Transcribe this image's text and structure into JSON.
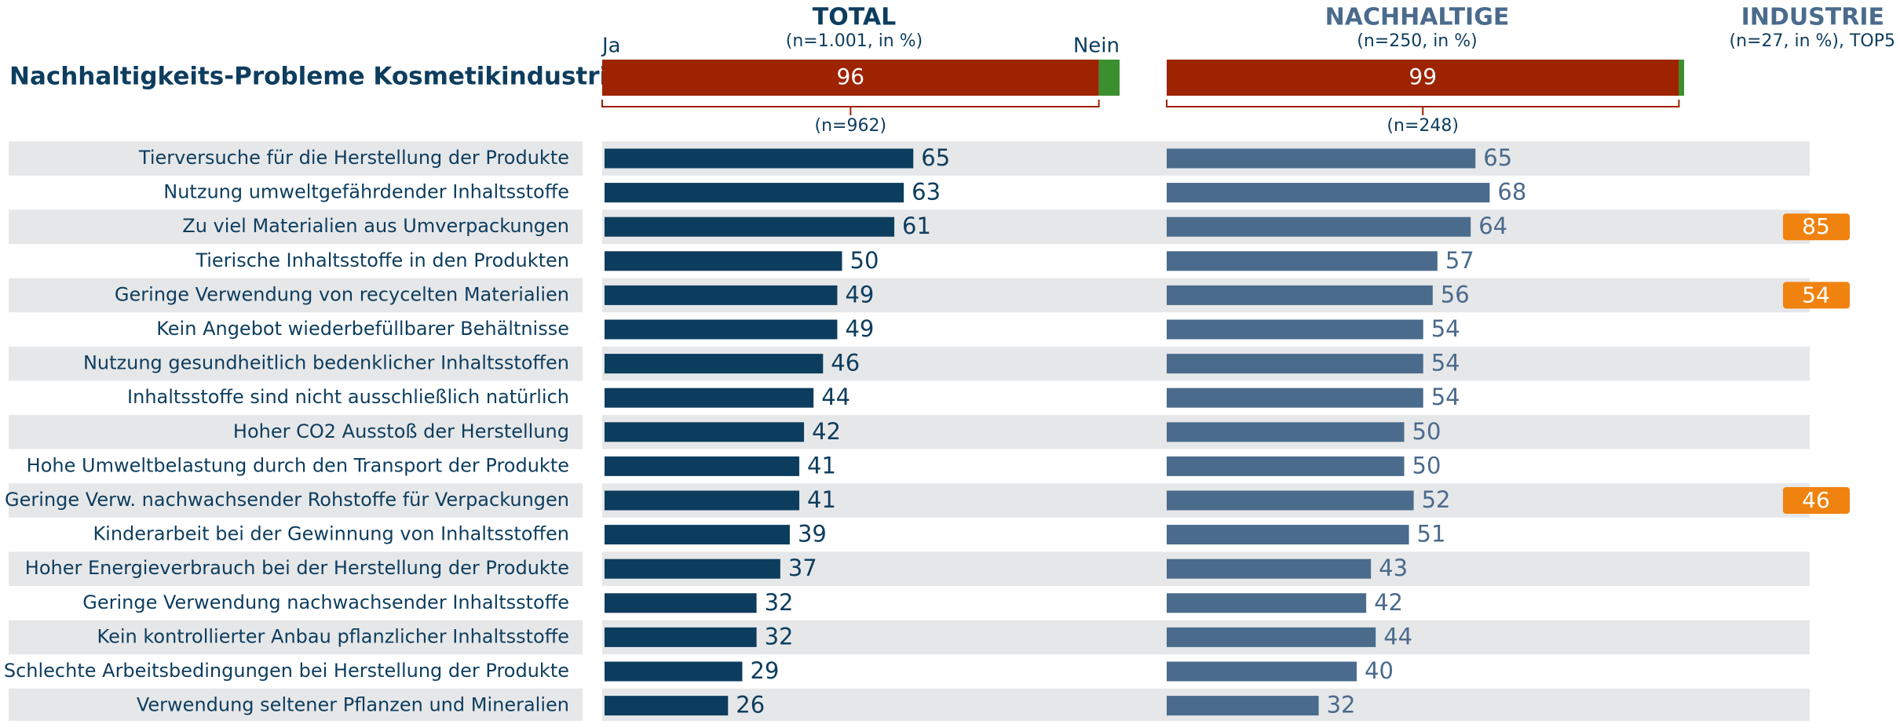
{
  "chart_data": {
    "type": "bar",
    "orientation": "horizontal",
    "title": "Nachhaltigkeits-Probleme Kosmetikindustrie",
    "xlim": [
      0,
      100
    ],
    "ja_label": "Ja",
    "nein_label": "Nein",
    "ja_color": "#9e2300",
    "nein_color": "#3a8f2e",
    "categories": [
      "Tierversuche für die Herstellung der Produkte",
      "Nutzung umweltgefährdender Inhaltsstoffe",
      "Zu viel Materialien aus Umverpackungen",
      "Tierische Inhaltsstoffe in den Produkten",
      "Geringe Verwendung von recycelten Materialien",
      "Kein Angebot wiederbefüllbarer Behältnisse",
      "Nutzung gesundheitlich bedenklicher Inhaltsstoffen",
      "Inhaltsstoffe sind nicht ausschließlich natürlich",
      "Hoher CO2 Ausstoß der Herstellung",
      "Hohe Umweltbelastung durch den Transport der Produkte",
      "Geringe Verw. nachwachsender Rohstoffe für Verpackungen",
      "Kinderarbeit bei der Gewinnung von Inhaltsstoffen",
      "Hoher Energieverbrauch bei der Herstellung der Produkte",
      "Geringe Verwendung nachwachsender Inhaltsstoffe",
      "Kein kontrollierter Anbau pflanzlicher Inhaltsstoffe",
      "Schlechte Arbeitsbedingungen bei Herstellung der Produkte",
      "Verwendung seltener Pflanzen und Mineralien"
    ],
    "series": [
      {
        "name": "TOTAL",
        "subtitle": "(n=1.001, in %)",
        "color": "#0d3d5e",
        "ja": 96,
        "nein": 4,
        "base": "(n=962)",
        "values": [
          65,
          63,
          61,
          50,
          49,
          49,
          46,
          44,
          42,
          41,
          41,
          39,
          37,
          32,
          32,
          29,
          26
        ]
      },
      {
        "name": "NACHHALTIGE",
        "subtitle": "(n=250, in %)",
        "color": "#4a6b8c",
        "ja": 99,
        "nein": 1,
        "base": "(n=248)",
        "values": [
          65,
          68,
          64,
          57,
          56,
          54,
          54,
          54,
          50,
          50,
          52,
          51,
          43,
          42,
          44,
          40,
          32
        ]
      },
      {
        "name": "INDUSTRIE",
        "subtitle": "(n=27, in %), TOP5",
        "color": "#f0820f",
        "values": [
          null,
          null,
          85,
          null,
          54,
          null,
          null,
          null,
          null,
          null,
          46,
          null,
          null,
          null,
          null,
          null,
          null
        ]
      }
    ]
  }
}
